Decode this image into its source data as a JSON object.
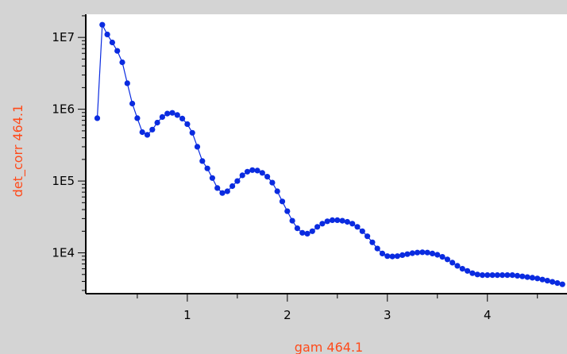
{
  "colors": {
    "background": "#d4d4d4",
    "plot_area": "#ffffff",
    "series": "#0a2be0",
    "axis_label": "#ff4a1a",
    "axis": "#000000"
  },
  "chart_data": {
    "type": "scatter",
    "title": "",
    "xlabel": "gam 464.1",
    "ylabel": "det_corr 464.1",
    "xlim": [
      0.08,
      4.78
    ],
    "ylim": [
      2700,
      21000000
    ],
    "yscale": "log",
    "grid": false,
    "legend": "none",
    "x_ticks": [
      1,
      2,
      3,
      4
    ],
    "x_tick_labels": [
      "1",
      "2",
      "3",
      "4"
    ],
    "y_ticks": [
      10000,
      100000,
      1000000,
      10000000
    ],
    "y_tick_labels": [
      "1E4",
      "1E5",
      "1E6",
      "1E7"
    ],
    "series": [
      {
        "markers": "filled-circle",
        "line": true,
        "x": [
          0.1,
          0.15,
          0.2,
          0.25,
          0.3,
          0.35,
          0.4,
          0.45,
          0.5,
          0.55,
          0.6,
          0.65,
          0.7,
          0.75,
          0.8,
          0.85,
          0.9,
          0.95,
          1.0,
          1.05,
          1.1,
          1.15,
          1.2,
          1.25,
          1.3,
          1.35,
          1.4,
          1.45,
          1.5,
          1.55,
          1.6,
          1.65,
          1.7,
          1.75,
          1.8,
          1.85,
          1.9,
          1.95,
          2.0,
          2.05,
          2.1,
          2.15,
          2.2,
          2.25,
          2.3,
          2.35,
          2.4,
          2.45,
          2.5,
          2.55,
          2.6,
          2.65,
          2.7,
          2.75,
          2.8,
          2.85,
          2.9,
          2.95,
          3.0,
          3.05,
          3.1,
          3.15,
          3.2,
          3.25,
          3.3,
          3.35,
          3.4,
          3.45,
          3.5,
          3.55,
          3.6,
          3.65,
          3.7,
          3.75,
          3.8,
          3.85,
          3.9,
          3.95,
          4.0,
          4.05,
          4.1,
          4.15,
          4.2,
          4.25,
          4.3,
          4.35,
          4.4,
          4.45,
          4.5,
          4.55,
          4.6,
          4.65,
          4.7,
          4.75
        ],
        "y": [
          750000,
          15000000,
          11000000,
          8500000,
          6500000,
          4500000,
          2300000,
          1200000,
          750000,
          480000,
          440000,
          520000,
          650000,
          780000,
          870000,
          890000,
          830000,
          740000,
          620000,
          470000,
          300000,
          190000,
          150000,
          110000,
          80000,
          68000,
          72000,
          85000,
          100000,
          120000,
          135000,
          142000,
          140000,
          130000,
          115000,
          95000,
          72000,
          52000,
          38000,
          28000,
          22000,
          19000,
          18500,
          20000,
          23000,
          25500,
          27500,
          28500,
          28500,
          28000,
          27000,
          25500,
          23000,
          20000,
          17000,
          14000,
          11500,
          9800,
          9000,
          8900,
          9000,
          9300,
          9600,
          9900,
          10100,
          10200,
          10100,
          9800,
          9400,
          8800,
          8100,
          7300,
          6600,
          6000,
          5600,
          5200,
          5000,
          4900,
          4900,
          4900,
          4900,
          4900,
          4900,
          4900,
          4800,
          4700,
          4600,
          4500,
          4400,
          4250,
          4100,
          3950,
          3800,
          3650
        ]
      }
    ]
  }
}
